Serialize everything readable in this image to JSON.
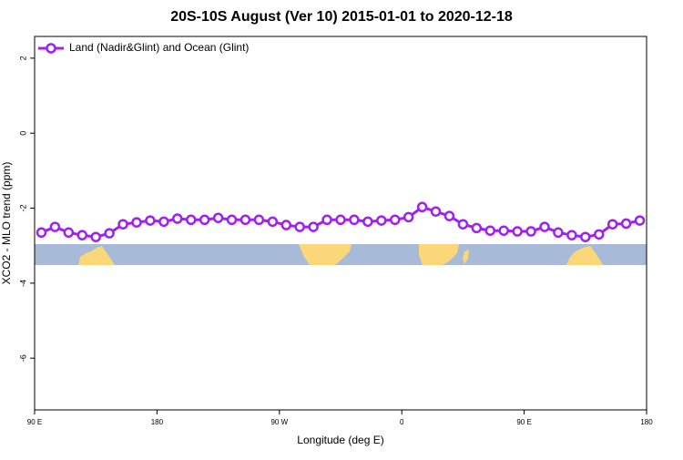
{
  "chart_data": {
    "type": "line",
    "title": "20S-10S August (Ver 10)   2015-01-01 to 2020-12-18",
    "x_label": "Longitude (deg E)",
    "y_label": "XCO2 - MLO trend (ppm)",
    "xlim": [
      90,
      540
    ],
    "xticks": [
      {
        "value": 90,
        "label": "90 E"
      },
      {
        "value": 180,
        "label": "180"
      },
      {
        "value": 270,
        "label": "90 W"
      },
      {
        "value": 360,
        "label": "0"
      },
      {
        "value": 450,
        "label": "90 E"
      },
      {
        "value": 540,
        "label": "180"
      }
    ],
    "ylim": [
      -7.38,
      2.58
    ],
    "yticks": [
      2,
      0,
      -2,
      -4,
      -6
    ],
    "legend": "top-left",
    "x": [
      95,
      105,
      115,
      125,
      135,
      145,
      155,
      165,
      175,
      185,
      195,
      205,
      215,
      225,
      235,
      245,
      255,
      265,
      275,
      285,
      295,
      305,
      315,
      325,
      335,
      345,
      355,
      365,
      375,
      385,
      395,
      405,
      415,
      425,
      435,
      445,
      455,
      465,
      475,
      485,
      495,
      505,
      515,
      525,
      535
    ],
    "series": [
      {
        "name": "Land (Nadir&Glint) and Ocean (Glint)",
        "color": "#a020f0",
        "values": [
          -2.65,
          -2.5,
          -2.65,
          -2.72,
          -2.77,
          -2.67,
          -2.43,
          -2.38,
          -2.33,
          -2.36,
          -2.28,
          -2.31,
          -2.31,
          -2.26,
          -2.31,
          -2.31,
          -2.31,
          -2.36,
          -2.45,
          -2.5,
          -2.5,
          -2.31,
          -2.31,
          -2.31,
          -2.36,
          -2.33,
          -2.31,
          -2.24,
          -1.97,
          -2.09,
          -2.21,
          -2.43,
          -2.53,
          -2.6,
          -2.6,
          -2.62,
          -2.62,
          -2.5,
          -2.65,
          -2.72,
          -2.77,
          -2.7,
          -2.43,
          -2.41,
          -2.33
        ]
      }
    ]
  }
}
